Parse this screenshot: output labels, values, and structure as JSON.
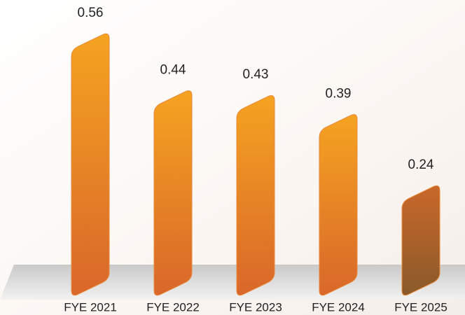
{
  "chart_data": {
    "type": "bar",
    "categories": [
      "FYE 2021",
      "FYE 2022",
      "FYE 2023",
      "FYE 2024",
      "FYE 2025"
    ],
    "values": [
      0.56,
      0.44,
      0.43,
      0.39,
      0.24
    ],
    "colors": [
      "#f5a321",
      "#f5a321",
      "#f5a321",
      "#f5a321",
      "#c9682a"
    ],
    "color_bottom": [
      "#d9672a",
      "#d9672a",
      "#d9672a",
      "#d9672a",
      "#8a5a2a"
    ]
  }
}
